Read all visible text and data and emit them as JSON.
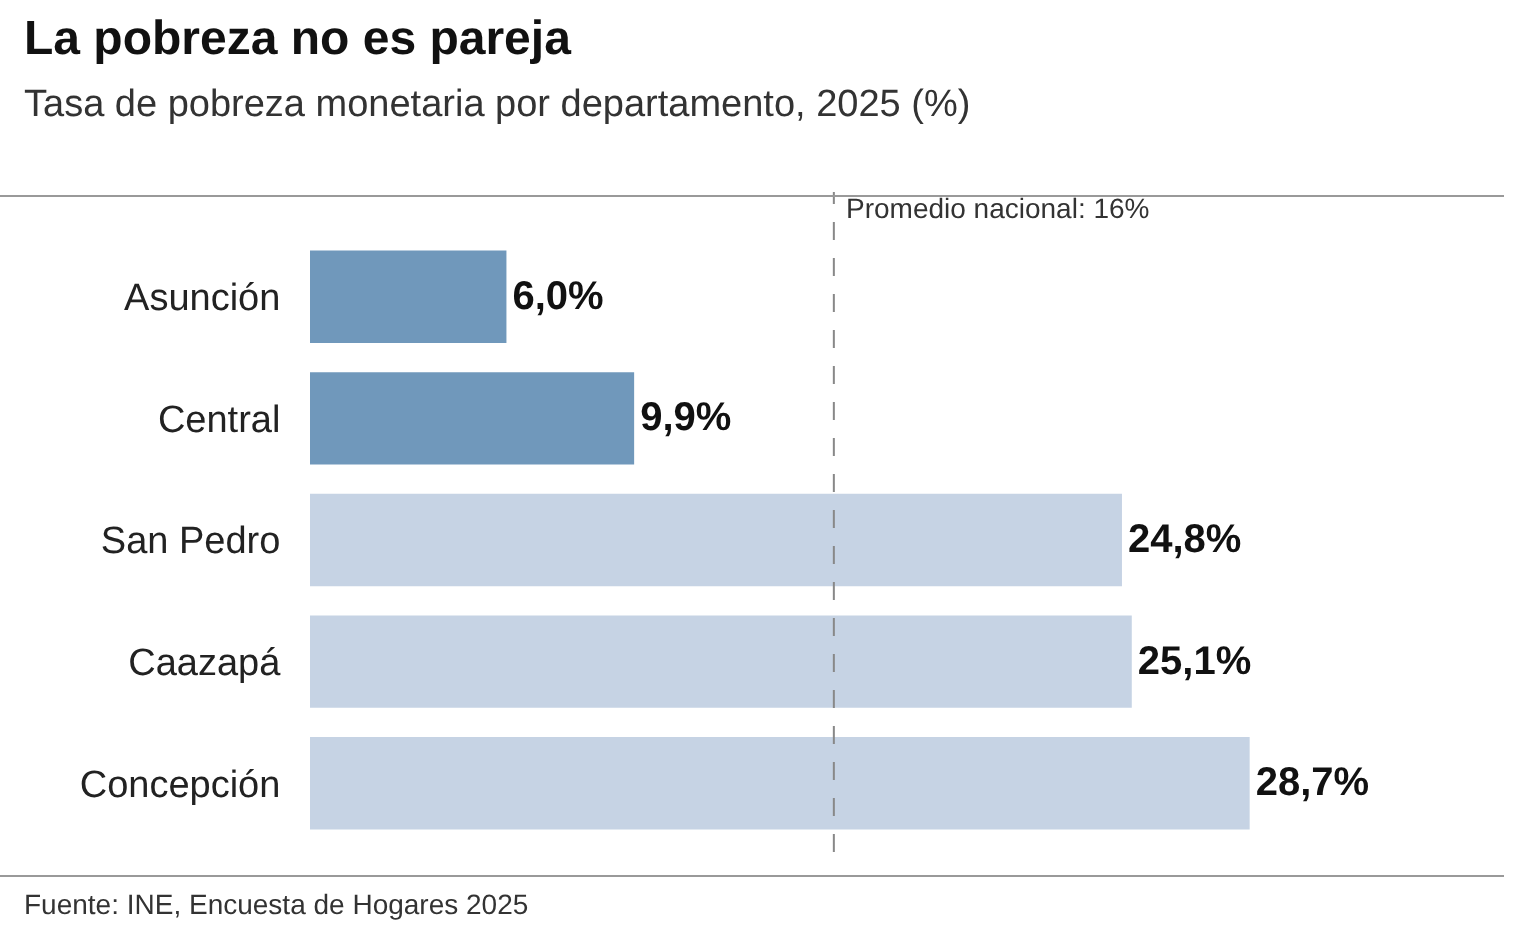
{
  "chart_data": {
    "type": "bar",
    "orientation": "horizontal",
    "title": "La pobreza no es pareja",
    "subtitle": "Tasa de pobreza monetaria por departamento, 2025 (%)",
    "categories": [
      "Asunción",
      "Central",
      "San Pedro",
      "Caazapá",
      "Concepción"
    ],
    "values": [
      6.0,
      9.9,
      24.8,
      25.1,
      28.7
    ],
    "colors": [
      "#7098bb",
      "#7098bb",
      "#c6d3e4",
      "#c6d3e4",
      "#c6d3e4"
    ],
    "value_labels": [
      "6,0%",
      "9,9%",
      "24,8%",
      "25,1%",
      "28,7%"
    ],
    "ref_lines": [
      {
        "axis": "x",
        "value": 16,
        "label": "Promedio nacional: 16%",
        "color": "#888888",
        "line_style": "dashed"
      }
    ],
    "annotations": [
      "Fuente: INE, Encuesta de Hogares 2025"
    ],
    "legend": false
  }
}
